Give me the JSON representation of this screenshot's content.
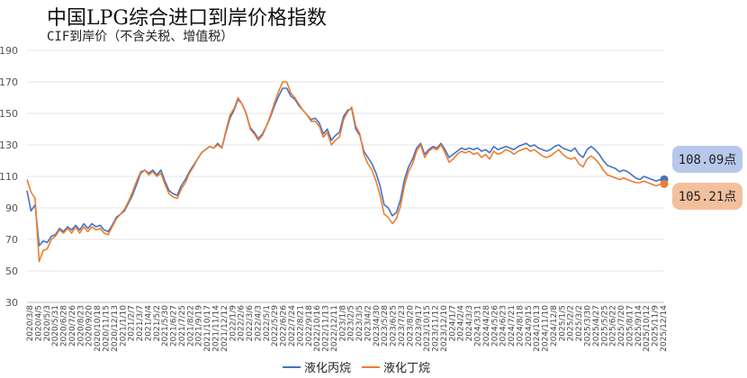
{
  "title": "中国LPG综合进口到岸价格指数",
  "subtitle": "CIF到岸价（不含关税、增值税）",
  "chart_data": {
    "type": "line",
    "ylim": [
      30,
      190
    ],
    "yticks": [
      30,
      50,
      70,
      90,
      110,
      130,
      150,
      170,
      190
    ],
    "x_labels": [
      "2020/3/8",
      "2020/5/3",
      "2020/6/28",
      "2020/8/23",
      "2020/10/18",
      "2020/12/13",
      "2021/2/7",
      "2021/4/4",
      "2021/5/30",
      "2021/7/25",
      "2021/9/19",
      "2021/11/14",
      "2022/1/9",
      "2022/3/6",
      "2022/5/1",
      "2022/6/26",
      "2022/8/21",
      "2022/10/16",
      "2022/12/11",
      "2023/2/5",
      "2023/4/2",
      "2023/5/28",
      "2023/7/23",
      "2023/9/17",
      "2023/11/12",
      "2024/1/7",
      "2024/3/3",
      "2024/4/28",
      "2024/6/23",
      "2024/8/18",
      "2024/10/13",
      "2024/12/8",
      "2025/2/2",
      "2025/3/30",
      "2025/5/25",
      "2025/7/20",
      "2025/9/14",
      "2025/11/9"
    ],
    "x_labels_alt": [
      "2020/4/5",
      "2020/5/31",
      "2020/7/26",
      "2020/9/20",
      "2020/11/15",
      "2021/1/10",
      "2021/3/7",
      "2021/5/2",
      "2021/6/27",
      "2021/8/22",
      "2021/10/17",
      "2021/12/12",
      "2022/2/6",
      "2022/4/3",
      "2022/5/29",
      "2022/7/24",
      "2022/9/18",
      "2022/11/13",
      "2023/1/8",
      "2023/3/5",
      "2023/4/30",
      "2023/6/25",
      "2023/8/20",
      "2023/10/15",
      "2023/12/10",
      "2024/2/4",
      "2024/3/31",
      "2024/5/26",
      "2024/7/21",
      "2024/9/15",
      "2024/11/10",
      "2025/1/5",
      "2025/3/2",
      "2025/4/27",
      "2025/6/22",
      "2025/8/17",
      "2025/10/12",
      "2025/12/14"
    ],
    "series": [
      {
        "name": "液化丙烷",
        "color": "#4472c4",
        "values": [
          101,
          88,
          92,
          66,
          69,
          68,
          72,
          73,
          77,
          75,
          78,
          76,
          79,
          76,
          80,
          77,
          80,
          78,
          79,
          76,
          75,
          79,
          84,
          86,
          88,
          93,
          98,
          105,
          112,
          114,
          112,
          114,
          111,
          114,
          107,
          101,
          99,
          98,
          104,
          108,
          113,
          117,
          121,
          125,
          127,
          129,
          128,
          131,
          128,
          138,
          147,
          152,
          159,
          156,
          150,
          141,
          138,
          134,
          137,
          142,
          148,
          155,
          161,
          166,
          166,
          161,
          159,
          155,
          152,
          149,
          146,
          147,
          144,
          137,
          140,
          133,
          136,
          138,
          148,
          152,
          153,
          140,
          136,
          126,
          122,
          118,
          112,
          104,
          92,
          90,
          85,
          87,
          95,
          108,
          116,
          121,
          128,
          131,
          124,
          127,
          129,
          128,
          131,
          127,
          122,
          124,
          126,
          128,
          127,
          128,
          127,
          128,
          126,
          127,
          125,
          129,
          127,
          128,
          129,
          128,
          127,
          129,
          130,
          131,
          129,
          130,
          128,
          127,
          126,
          127,
          129,
          130,
          128,
          127,
          126,
          128,
          124,
          122,
          127,
          129,
          127,
          124,
          120,
          117,
          116,
          115,
          113,
          114,
          113,
          111,
          109,
          108,
          110,
          109,
          108,
          107,
          108,
          108.09
        ]
      },
      {
        "name": "液化丁烷",
        "color": "#ed7d31",
        "values": [
          108,
          100,
          96,
          56,
          63,
          64,
          70,
          72,
          76,
          74,
          77,
          74,
          78,
          74,
          78,
          75,
          78,
          76,
          77,
          74,
          73,
          78,
          83,
          86,
          89,
          94,
          100,
          107,
          113,
          114,
          111,
          113,
          110,
          112,
          105,
          99,
          97,
          96,
          102,
          106,
          112,
          116,
          121,
          125,
          127,
          129,
          128,
          130,
          128,
          139,
          149,
          153,
          160,
          156,
          150,
          140,
          137,
          133,
          136,
          142,
          149,
          157,
          164,
          170,
          170,
          163,
          160,
          156,
          152,
          149,
          145,
          145,
          142,
          135,
          138,
          130,
          133,
          135,
          146,
          151,
          154,
          142,
          137,
          124,
          118,
          114,
          107,
          98,
          86,
          84,
          80,
          83,
          91,
          104,
          113,
          118,
          126,
          130,
          122,
          126,
          128,
          127,
          130,
          125,
          119,
          121,
          124,
          126,
          125,
          126,
          124,
          125,
          122,
          124,
          121,
          126,
          124,
          125,
          127,
          126,
          124,
          126,
          127,
          128,
          126,
          127,
          125,
          123,
          122,
          123,
          125,
          127,
          124,
          122,
          121,
          122,
          118,
          116,
          121,
          123,
          121,
          118,
          114,
          111,
          110,
          109,
          108,
          109,
          108,
          107,
          106,
          106,
          107,
          106,
          105,
          104,
          105,
          105.21
        ]
      }
    ]
  },
  "badges": {
    "propane": "108.09点",
    "butane": "105.21点"
  },
  "legend": {
    "propane": "液化丙烷",
    "butane": "液化丁烷"
  },
  "colors": {
    "propane": "#4472c4",
    "butane": "#ed7d31",
    "grid": "#e6e6e6",
    "axis": "#bfbfbf"
  }
}
